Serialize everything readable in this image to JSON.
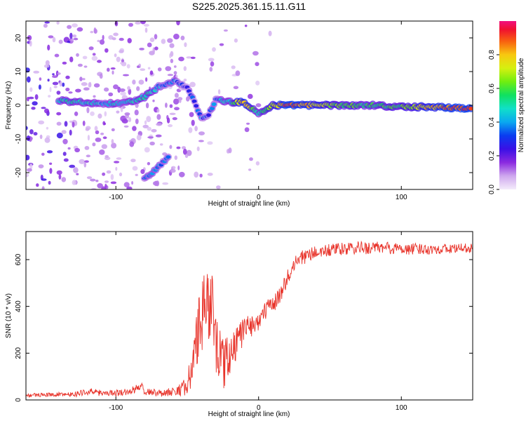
{
  "title": "S225.2025.361.15.11.G11",
  "chart_data": [
    {
      "type": "heatmap",
      "xlabel": "Height of straight line (km)",
      "ylabel": "Frequency (Hz)",
      "xlim": [
        -163,
        150
      ],
      "ylim": [
        -25,
        25
      ],
      "xticks": [
        -100,
        0,
        100
      ],
      "yticks": [
        -20,
        -10,
        0,
        10,
        20
      ],
      "ridge": [
        {
          "x": -140,
          "y": 1.5,
          "a": 0.45
        },
        {
          "x": -130,
          "y": 1.0,
          "a": 0.5
        },
        {
          "x": -120,
          "y": 0.8,
          "a": 0.45
        },
        {
          "x": -110,
          "y": 0.6,
          "a": 0.4
        },
        {
          "x": -100,
          "y": 0.5,
          "a": 0.45
        },
        {
          "x": -90,
          "y": 1.0,
          "a": 0.45
        },
        {
          "x": -80,
          "y": 2.5,
          "a": 0.5
        },
        {
          "x": -70,
          "y": 5.5,
          "a": 0.4
        },
        {
          "x": -58,
          "y": 7.5,
          "a": 0.35
        },
        {
          "x": -50,
          "y": 5.0,
          "a": 0.3
        },
        {
          "x": -45,
          "y": 1.0,
          "a": 0.3
        },
        {
          "x": -40,
          "y": -4.0,
          "a": 0.35
        },
        {
          "x": -35,
          "y": -3.0,
          "a": 0.3
        },
        {
          "x": -30,
          "y": 1.5,
          "a": 0.35
        },
        {
          "x": -20,
          "y": 1.0,
          "a": 0.5
        },
        {
          "x": -10,
          "y": 0.8,
          "a": 0.85
        },
        {
          "x": 0,
          "y": -2.5,
          "a": 0.45
        },
        {
          "x": 10,
          "y": 0.0,
          "a": 0.7
        },
        {
          "x": 20,
          "y": 0.0,
          "a": 0.95
        },
        {
          "x": 40,
          "y": 0.0,
          "a": 0.75
        },
        {
          "x": 60,
          "y": 0.0,
          "a": 0.6
        },
        {
          "x": 80,
          "y": 0.0,
          "a": 0.55
        },
        {
          "x": 100,
          "y": -0.5,
          "a": 0.6
        },
        {
          "x": 120,
          "y": -0.5,
          "a": 0.8
        },
        {
          "x": 150,
          "y": -1.0,
          "a": 0.95
        }
      ],
      "branch": [
        {
          "x": -80,
          "y": -22,
          "a": 0.35
        },
        {
          "x": -72,
          "y": -19,
          "a": 0.4
        },
        {
          "x": -62,
          "y": -15,
          "a": 0.35
        }
      ],
      "colorbar": {
        "label": "Normalized spectral amplitude",
        "ticks": [
          0.0,
          0.2,
          0.4,
          0.6,
          0.8
        ],
        "tick_labels": [
          "0.0",
          "0.2",
          "0.4",
          "0.6",
          "0.8"
        ]
      }
    },
    {
      "type": "line",
      "xlabel": "Height of straight line (km)",
      "ylabel": "SNR (10 * v/v)",
      "xlim": [
        -163,
        150
      ],
      "ylim": [
        0,
        720
      ],
      "xticks": [
        -100,
        0,
        100
      ],
      "yticks": [
        0,
        200,
        400,
        600
      ],
      "color": "#e8332a",
      "x": [
        -163,
        -150,
        -130,
        -120,
        -110,
        -100,
        -90,
        -82,
        -80,
        -70,
        -60,
        -50,
        -45,
        -40,
        -35,
        -33,
        -30,
        -25,
        -20,
        -15,
        -10,
        -5,
        0,
        5,
        10,
        15,
        20,
        25,
        30,
        40,
        50,
        60,
        70,
        80,
        90,
        100,
        110,
        120,
        130,
        140,
        150
      ],
      "y": [
        20,
        22,
        25,
        35,
        30,
        30,
        35,
        60,
        35,
        30,
        35,
        60,
        180,
        350,
        420,
        450,
        250,
        150,
        200,
        250,
        300,
        320,
        340,
        380,
        410,
        450,
        520,
        580,
        610,
        630,
        640,
        645,
        650,
        650,
        650,
        645,
        645,
        645,
        645,
        648,
        650
      ],
      "noise": [
        8,
        8,
        10,
        14,
        14,
        14,
        16,
        20,
        14,
        16,
        20,
        40,
        140,
        160,
        170,
        170,
        140,
        110,
        90,
        70,
        60,
        50,
        45,
        40,
        40,
        38,
        35,
        30,
        30,
        28,
        28,
        28,
        28,
        28,
        28,
        25,
        25,
        22,
        22,
        20,
        20
      ]
    }
  ]
}
